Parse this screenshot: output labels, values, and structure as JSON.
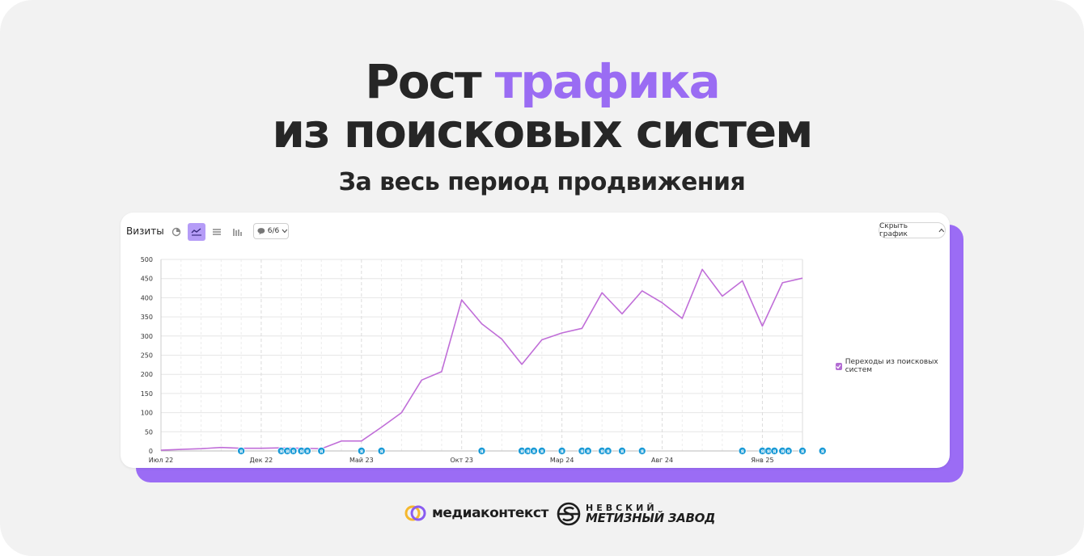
{
  "heading": {
    "line1_plain": "Рост ",
    "line1_accent": "трафика",
    "line2": "из поисковых систем",
    "subtitle": "За весь период продвижения"
  },
  "colors": {
    "accent": "#9a6cf3",
    "series": "#c06ed8",
    "annotation": "#1a9ad6"
  },
  "panel": {
    "title": "Визиты",
    "segments": "6/6",
    "hide_label": "Скрыть график",
    "icons": [
      "pie-icon",
      "line-chart-icon",
      "area-chart-icon",
      "bar-chart-icon",
      "comment-icon"
    ]
  },
  "chart_data": {
    "type": "line",
    "ylim": [
      0,
      500
    ],
    "yticks": [
      0,
      50,
      100,
      150,
      200,
      250,
      300,
      350,
      400,
      450,
      500
    ],
    "x_labels": [
      "Июл 22",
      "Дек 22",
      "Май 23",
      "Окт 23",
      "Мар 24",
      "Авг 24",
      "Янв 25"
    ],
    "grid": true,
    "legend_position": "right",
    "series": [
      {
        "name": "Переходы из поисковых систем",
        "values": [
          2,
          4,
          6,
          9,
          7,
          7,
          8,
          7,
          6,
          26,
          26,
          62,
          100,
          185,
          207,
          394,
          332,
          292,
          226,
          290,
          308,
          320,
          413,
          358,
          418,
          387,
          346,
          474,
          404,
          444,
          326,
          439,
          451
        ]
      }
    ],
    "annotation_marker": "Я",
    "annotations": [
      4,
      6,
      6.3,
      6.6,
      7,
      7.3,
      8,
      10,
      11,
      16,
      18,
      18.3,
      18.6,
      19,
      20,
      21,
      21.3,
      22,
      22.3,
      23,
      24,
      29,
      30,
      30.3,
      30.6,
      31,
      31.3,
      32,
      33
    ]
  }
}
